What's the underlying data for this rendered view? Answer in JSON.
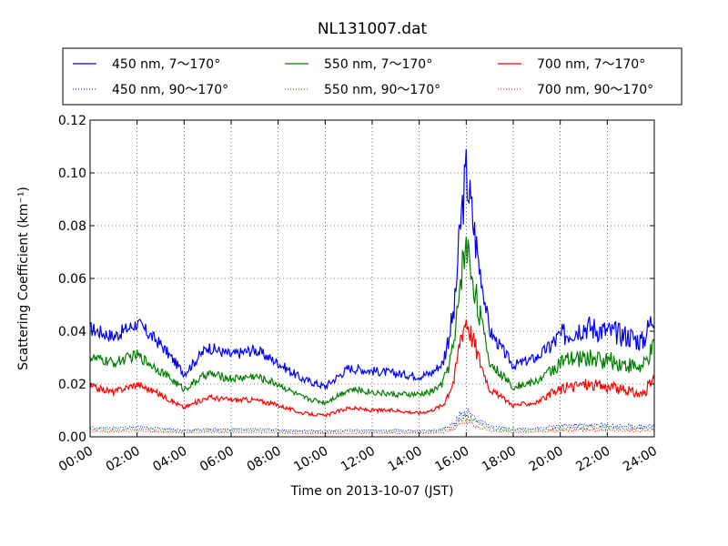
{
  "chart_data": {
    "type": "line",
    "title": "NL131007.dat",
    "xlabel": "Time on 2013-10-07 (JST)",
    "ylabel": "Scattering Coefficient (km⁻¹)",
    "xlim": [
      "00:00",
      "24:00"
    ],
    "ylim": [
      0.0,
      0.12
    ],
    "grid": true,
    "legend_position": "top",
    "x_tick_labels": [
      "00:00",
      "02:00",
      "04:00",
      "06:00",
      "08:00",
      "10:00",
      "12:00",
      "14:00",
      "16:00",
      "18:00",
      "20:00",
      "22:00",
      "24:00"
    ],
    "y_tick_labels": [
      "0.00",
      "0.02",
      "0.04",
      "0.06",
      "0.08",
      "0.10",
      "0.12"
    ],
    "x_hours": [
      0,
      1,
      2,
      3,
      4,
      5,
      6,
      7,
      8,
      9,
      10,
      11,
      12,
      13,
      14,
      14.5,
      15,
      15.5,
      15.75,
      16,
      16.5,
      17,
      18,
      19,
      20,
      21,
      22,
      23,
      23.5,
      24
    ],
    "series": [
      {
        "name": "450 nm, 7～170°",
        "color": "#0000ff",
        "style": "solid",
        "values": [
          0.041,
          0.038,
          0.043,
          0.035,
          0.024,
          0.034,
          0.031,
          0.033,
          0.028,
          0.022,
          0.019,
          0.026,
          0.025,
          0.024,
          0.023,
          0.024,
          0.028,
          0.048,
          0.08,
          0.1,
          0.068,
          0.04,
          0.027,
          0.03,
          0.038,
          0.042,
          0.04,
          0.038,
          0.036,
          0.047
        ]
      },
      {
        "name": "550 nm, 7～170°",
        "color": "#008000",
        "style": "solid",
        "values": [
          0.03,
          0.028,
          0.031,
          0.025,
          0.018,
          0.024,
          0.022,
          0.023,
          0.02,
          0.015,
          0.013,
          0.018,
          0.017,
          0.016,
          0.016,
          0.017,
          0.02,
          0.035,
          0.06,
          0.073,
          0.05,
          0.028,
          0.019,
          0.021,
          0.028,
          0.03,
          0.029,
          0.027,
          0.026,
          0.034
        ]
      },
      {
        "name": "700 nm, 7～170°",
        "color": "#ff0000",
        "style": "solid",
        "values": [
          0.019,
          0.017,
          0.02,
          0.016,
          0.011,
          0.015,
          0.014,
          0.014,
          0.012,
          0.009,
          0.008,
          0.011,
          0.01,
          0.01,
          0.009,
          0.01,
          0.012,
          0.022,
          0.038,
          0.045,
          0.031,
          0.018,
          0.012,
          0.013,
          0.018,
          0.02,
          0.019,
          0.017,
          0.016,
          0.022
        ]
      },
      {
        "name": "450 nm, 90～170°",
        "color": "#0000ff",
        "style": "dotted",
        "values": [
          0.0035,
          0.0033,
          0.0037,
          0.0032,
          0.0025,
          0.003,
          0.0028,
          0.003,
          0.0027,
          0.0024,
          0.0022,
          0.0026,
          0.0025,
          0.0025,
          0.0024,
          0.0025,
          0.003,
          0.005,
          0.008,
          0.0095,
          0.0065,
          0.004,
          0.003,
          0.0032,
          0.004,
          0.0045,
          0.0043,
          0.004,
          0.0038,
          0.0045
        ]
      },
      {
        "name": "550 nm, 90～170°",
        "color": "#008000",
        "style": "dotted",
        "values": [
          0.0028,
          0.0026,
          0.003,
          0.0025,
          0.002,
          0.0024,
          0.0022,
          0.0024,
          0.0021,
          0.0018,
          0.0017,
          0.002,
          0.0019,
          0.0019,
          0.0018,
          0.0019,
          0.0023,
          0.004,
          0.0065,
          0.0078,
          0.0052,
          0.0031,
          0.0023,
          0.0025,
          0.0031,
          0.0035,
          0.0033,
          0.0031,
          0.003,
          0.0036
        ]
      },
      {
        "name": "700 nm, 90～170°",
        "color": "#ff0000",
        "style": "dotted",
        "values": [
          0.0021,
          0.0019,
          0.0022,
          0.0018,
          0.0015,
          0.0018,
          0.0016,
          0.0017,
          0.0015,
          0.0013,
          0.0012,
          0.0014,
          0.0014,
          0.0014,
          0.0013,
          0.0014,
          0.0017,
          0.003,
          0.0048,
          0.0058,
          0.0039,
          0.0023,
          0.0017,
          0.0018,
          0.0023,
          0.0026,
          0.0025,
          0.0023,
          0.0022,
          0.0027
        ]
      }
    ],
    "legend_order": [
      0,
      3,
      1,
      4,
      2,
      5
    ]
  }
}
